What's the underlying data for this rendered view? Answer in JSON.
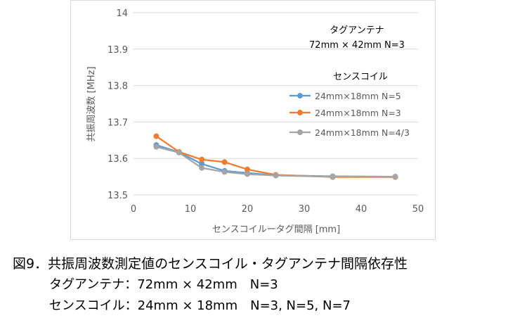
{
  "chart_data": {
    "type": "line",
    "ylabel": "共振周波数 [MHz]",
    "xlabel": "センスコイルータグ間隔 [mm]",
    "xlim": [
      0,
      50
    ],
    "ylim": [
      13.5,
      14
    ],
    "xticks": [
      "0",
      "10",
      "20",
      "30",
      "40",
      "50"
    ],
    "yticks": [
      "13.5",
      "13.6",
      "13.7",
      "13.8",
      "13.9",
      "14"
    ],
    "grid": "horizontal",
    "legend_position": "right",
    "legend_title": "センスコイル",
    "annotation_title": "タグアンテナ",
    "annotation_sub": "72mm × 42mm N=3",
    "series": [
      {
        "name": "24mm×18mm N=5",
        "color": "#5b9bd5",
        "x": [
          4,
          8,
          12,
          16,
          20,
          25,
          35,
          46
        ],
        "y": [
          13.637,
          13.617,
          13.585,
          13.566,
          13.56,
          13.554,
          13.551,
          13.55
        ]
      },
      {
        "name": "24mm×18mm N=3",
        "color": "#ed7d31",
        "x": [
          4,
          8,
          12,
          16,
          20,
          25,
          35,
          46
        ],
        "y": [
          13.661,
          13.618,
          13.597,
          13.59,
          13.57,
          13.555,
          13.549,
          13.549
        ]
      },
      {
        "name": "24mm×18mm N=4/3",
        "color": "#a5a5a5",
        "x": [
          4,
          8,
          12,
          16,
          20,
          25,
          35,
          46
        ],
        "y": [
          13.632,
          13.616,
          13.574,
          13.563,
          13.557,
          13.553,
          13.55,
          13.55
        ]
      }
    ]
  },
  "caption": {
    "line1": "図9．共振周波数測定値のセンスコイル・タグアンテナ間隔依存性",
    "line2": "タグアンテナ：72mm × 42mm　N=3",
    "line3": "センスコイル：24mm × 18mm　N=3, N=5, N=7"
  }
}
